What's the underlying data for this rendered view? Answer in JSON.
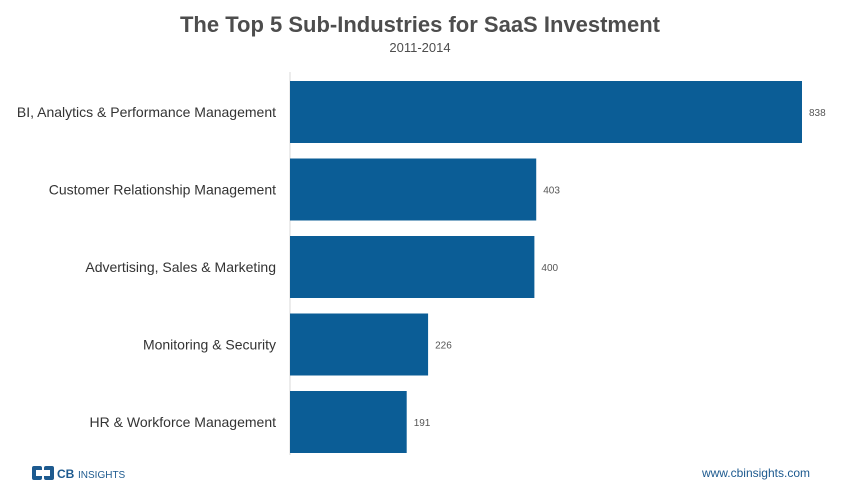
{
  "chart_data": {
    "type": "bar",
    "orientation": "horizontal",
    "title": "The Top 5 Sub-Industries for SaaS Investment",
    "subtitle": "2011-2014",
    "categories": [
      "BI, Analytics & Performance Management",
      "Customer Relationship Management",
      "Advertising, Sales & Marketing",
      "Monitoring & Security",
      "HR & Workforce Management"
    ],
    "values": [
      838,
      403,
      400,
      226,
      191
    ],
    "xlim": [
      0,
      838
    ],
    "xlabel": "",
    "ylabel": "",
    "grid": false,
    "legend": "none"
  },
  "colors": {
    "bar": "#0b5d96",
    "title": "#4d4d4d",
    "brand": "#1d5a8f",
    "axis": "#d9d9d9"
  },
  "footer": {
    "logo_text_bold": "CB",
    "logo_text_light": "INSIGHTS",
    "url": "www.cbinsights.com"
  }
}
